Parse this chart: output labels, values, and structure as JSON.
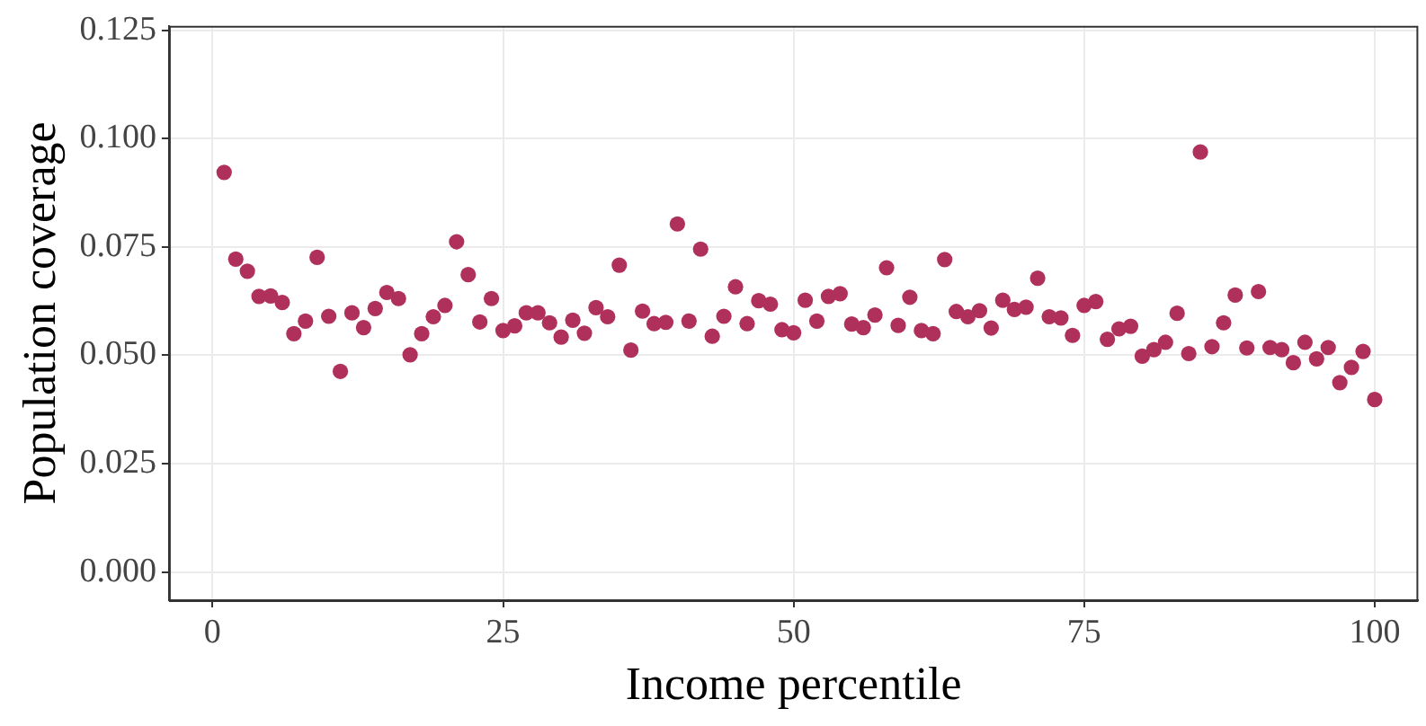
{
  "chart_data": {
    "type": "scatter",
    "xlabel": "Income percentile",
    "ylabel": "Population coverage",
    "x": [
      1,
      2,
      3,
      4,
      5,
      6,
      7,
      8,
      9,
      10,
      11,
      12,
      13,
      14,
      15,
      16,
      17,
      18,
      19,
      20,
      21,
      22,
      23,
      24,
      25,
      26,
      27,
      28,
      29,
      30,
      31,
      32,
      33,
      34,
      35,
      36,
      37,
      38,
      39,
      40,
      41,
      42,
      43,
      44,
      45,
      46,
      47,
      48,
      49,
      50,
      51,
      52,
      53,
      54,
      55,
      56,
      57,
      58,
      59,
      60,
      61,
      62,
      63,
      64,
      65,
      66,
      67,
      68,
      69,
      70,
      71,
      72,
      73,
      74,
      75,
      76,
      77,
      78,
      79,
      80,
      81,
      82,
      83,
      84,
      85,
      86,
      87,
      88,
      89,
      90,
      91,
      92,
      93,
      94,
      95,
      96,
      97,
      98,
      99,
      100
    ],
    "series": [
      {
        "color": "#b0305c",
        "values": [
          0.0922,
          0.0722,
          0.0694,
          0.0636,
          0.0637,
          0.0622,
          0.055,
          0.0579,
          0.0726,
          0.059,
          0.0463,
          0.0598,
          0.0564,
          0.0608,
          0.0645,
          0.0631,
          0.0501,
          0.055,
          0.0589,
          0.0615,
          0.0762,
          0.0686,
          0.0577,
          0.0631,
          0.0557,
          0.0568,
          0.0598,
          0.0598,
          0.0575,
          0.0542,
          0.0581,
          0.0551,
          0.061,
          0.0589,
          0.0708,
          0.0512,
          0.0602,
          0.0573,
          0.0576,
          0.0803,
          0.0579,
          0.0745,
          0.0544,
          0.059,
          0.0658,
          0.0573,
          0.0626,
          0.0618,
          0.0559,
          0.0552,
          0.0627,
          0.0579,
          0.0636,
          0.0642,
          0.0572,
          0.0564,
          0.0593,
          0.0702,
          0.0569,
          0.0634,
          0.0557,
          0.055,
          0.0721,
          0.0601,
          0.0589,
          0.0603,
          0.0563,
          0.0627,
          0.0606,
          0.0611,
          0.0678,
          0.0589,
          0.0586,
          0.0546,
          0.0615,
          0.0624,
          0.0537,
          0.0561,
          0.0567,
          0.0498,
          0.0513,
          0.053,
          0.0597,
          0.0504,
          0.0969,
          0.052,
          0.0575,
          0.0639,
          0.0517,
          0.0647,
          0.0518,
          0.0513,
          0.0483,
          0.053,
          0.0492,
          0.0518,
          0.0437,
          0.0472,
          0.0509,
          0.0398
        ]
      }
    ],
    "xlim": [
      -3.75,
      103.75
    ],
    "xticks": [
      0,
      25,
      50,
      75,
      100
    ],
    "ylim": [
      -0.0065,
      0.126
    ],
    "yticks": [
      {
        "value": 0,
        "label": "0.000"
      },
      {
        "value": 0.025,
        "label": "0.025"
      },
      {
        "value": 0.05,
        "label": "0.050"
      },
      {
        "value": 0.075,
        "label": "0.075"
      },
      {
        "value": 0.1,
        "label": "0.100"
      },
      {
        "value": 0.125,
        "label": "0.125"
      }
    ],
    "grid": true,
    "marker": "circle"
  }
}
